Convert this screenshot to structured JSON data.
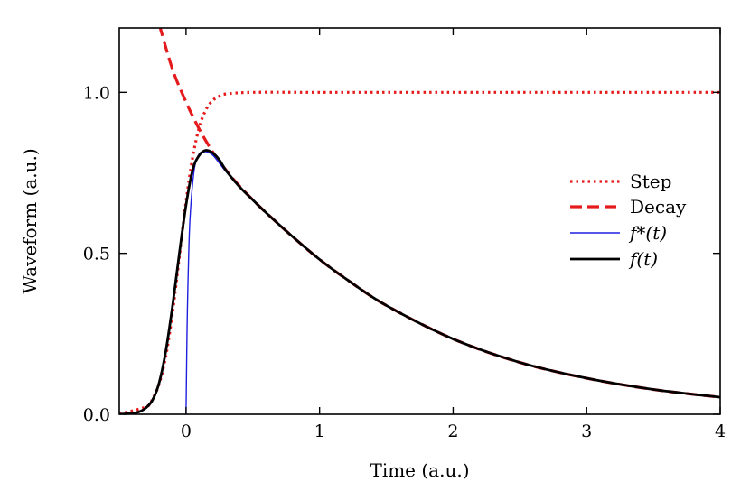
{
  "chart_data": {
    "type": "line",
    "xlabel": "Time (a.u.)",
    "ylabel": "Waveform (a.u.)",
    "xlim": [
      -0.5,
      4
    ],
    "ylim": [
      0,
      1.2
    ],
    "xticks": [
      0,
      1,
      2,
      3,
      4
    ],
    "yticks": [
      0.0,
      0.5,
      1.0
    ],
    "xtick_labels": [
      "0",
      "1",
      "2",
      "3",
      "4"
    ],
    "ytick_labels": [
      "0.0",
      "0.5",
      "1.0"
    ],
    "grid": false,
    "legend_position": "right",
    "series": [
      {
        "name": "Step",
        "style": "dotted",
        "color": "#e41a1c",
        "x": [
          -0.5,
          -0.3,
          -0.25,
          -0.2,
          -0.15,
          -0.1,
          -0.05,
          0.0,
          0.05,
          0.1,
          0.15,
          0.2,
          0.25,
          0.3,
          0.5,
          1.0,
          2.0,
          3.0,
          4.0
        ],
        "y": [
          0.001,
          0.023,
          0.048,
          0.097,
          0.184,
          0.319,
          0.49,
          0.66,
          0.799,
          0.893,
          0.947,
          0.975,
          0.988,
          0.995,
          1.0,
          1.0,
          1.0,
          1.0,
          1.0
        ]
      },
      {
        "name": "Decay",
        "style": "dashed",
        "color": "#e41a1c",
        "x": [
          -0.2,
          -0.1,
          0.0,
          0.1,
          0.2,
          0.3,
          0.4,
          0.5,
          0.6,
          0.8,
          1.0,
          1.2,
          1.5,
          2.0,
          2.5,
          3.0,
          3.5,
          4.0
        ],
        "y": [
          1.21,
          1.07,
          0.97,
          0.885,
          0.815,
          0.758,
          0.709,
          0.666,
          0.626,
          0.551,
          0.481,
          0.42,
          0.338,
          0.234,
          0.161,
          0.112,
          0.077,
          0.053
        ]
      },
      {
        "name": "f*(t)",
        "style": "solid",
        "color": "#1f1fe0",
        "x": [
          0.0,
          0.005,
          0.01,
          0.02,
          0.03,
          0.05,
          0.07,
          0.1,
          0.13,
          0.16,
          0.2,
          0.25,
          0.3,
          0.4,
          0.5,
          0.6,
          0.8,
          1.0,
          1.2,
          1.5,
          2.0,
          2.5,
          3.0,
          3.5,
          4.0
        ],
        "y": [
          0.0,
          0.18,
          0.32,
          0.5,
          0.61,
          0.72,
          0.78,
          0.81,
          0.815,
          0.815,
          0.805,
          0.78,
          0.753,
          0.707,
          0.666,
          0.626,
          0.551,
          0.481,
          0.42,
          0.338,
          0.234,
          0.161,
          0.112,
          0.077,
          0.053
        ]
      },
      {
        "name": "f(t)",
        "style": "solid",
        "color": "#000000",
        "x": [
          -0.5,
          -0.4,
          -0.35,
          -0.3,
          -0.25,
          -0.2,
          -0.15,
          -0.1,
          -0.05,
          0.0,
          0.05,
          0.1,
          0.15,
          0.2,
          0.25,
          0.3,
          0.4,
          0.5,
          0.6,
          0.8,
          1.0,
          1.2,
          1.5,
          2.0,
          2.5,
          3.0,
          3.5,
          4.0
        ],
        "y": [
          0.0,
          0.003,
          0.008,
          0.02,
          0.045,
          0.1,
          0.2,
          0.34,
          0.5,
          0.65,
          0.76,
          0.805,
          0.82,
          0.812,
          0.79,
          0.757,
          0.707,
          0.666,
          0.626,
          0.551,
          0.481,
          0.42,
          0.338,
          0.234,
          0.161,
          0.112,
          0.077,
          0.053
        ]
      }
    ]
  }
}
